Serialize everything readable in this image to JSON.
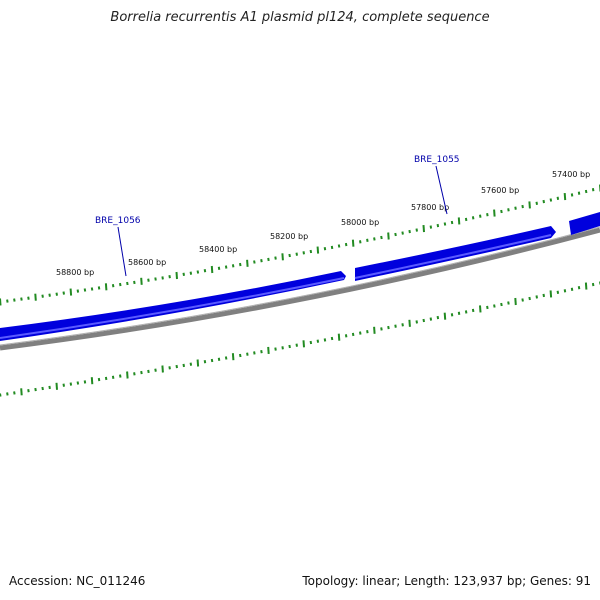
{
  "title": "Borrelia recurrentis A1 plasmid pl124, complete sequence",
  "footer": {
    "accession": "Accession: NC_011246",
    "summary": "Topology: linear; Length: 123,937 bp; Genes: 91"
  },
  "ticks": [
    {
      "label": "58800 bp"
    },
    {
      "label": "58600 bp"
    },
    {
      "label": "58400 bp"
    },
    {
      "label": "58200 bp"
    },
    {
      "label": "58000 bp"
    },
    {
      "label": "57800 bp"
    },
    {
      "label": "57600 bp"
    },
    {
      "label": "57400 bp"
    }
  ],
  "genes": [
    {
      "label": "BRE_1056"
    },
    {
      "label": "BRE_1055"
    }
  ],
  "colors": {
    "gene": "#0000dd",
    "backbone": "#808080",
    "ruler": "#228b22",
    "gene_label": "#0000aa"
  }
}
